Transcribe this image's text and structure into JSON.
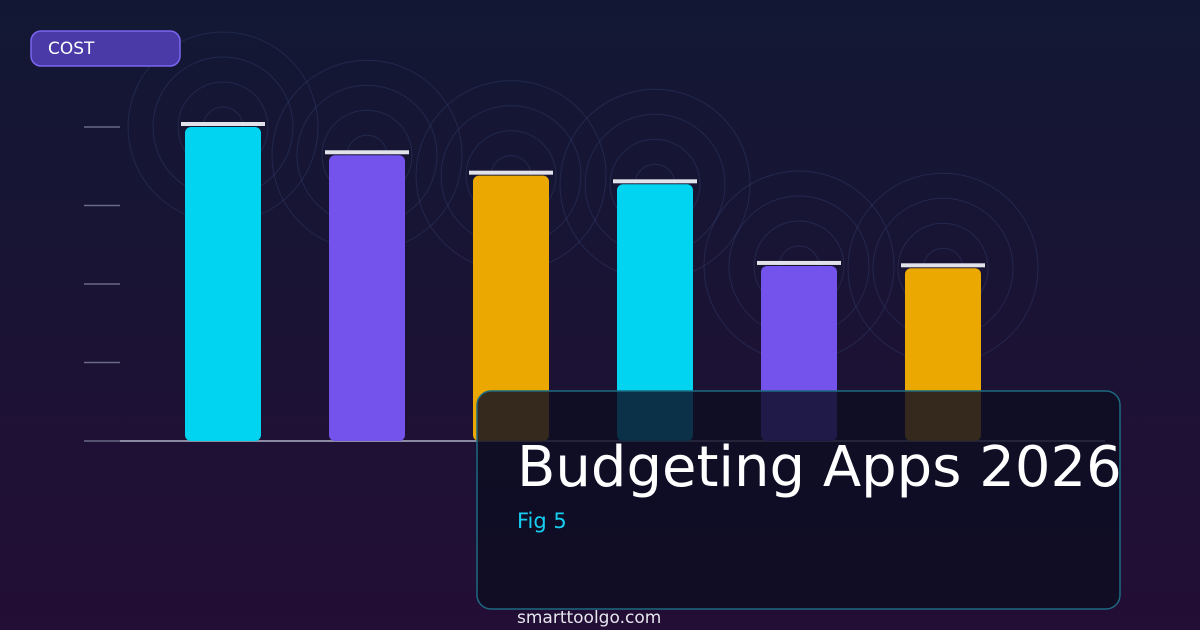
{
  "chart_data": {
    "type": "bar",
    "title": "Budgeting Apps 2026",
    "subtitle": "Fig 5",
    "y_label": "COST",
    "source": "smarttoolgo.com",
    "categories": [
      null,
      null,
      null,
      null,
      null,
      null
    ],
    "values": [
      4.0,
      3.64,
      3.38,
      3.27,
      2.23,
      2.2
    ],
    "colors": [
      "#00d4f0",
      "#7452ec",
      "#eaa800",
      "#00d4f0",
      "#7452ec",
      "#eaa800"
    ],
    "ylim": [
      0,
      4
    ],
    "yticks": [
      0,
      1,
      2,
      3,
      4
    ]
  }
}
